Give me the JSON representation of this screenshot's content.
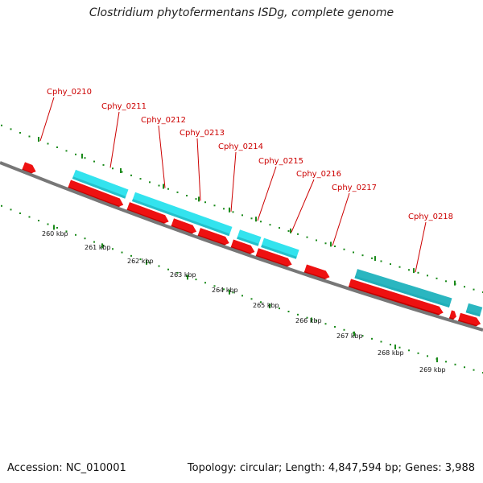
{
  "title": "Clostridium phytofermentans ISDg, complete genome",
  "footer": {
    "accession": "Accession: NC_010001",
    "topology": "Topology: circular; Length: 4,847,594 bp; Genes: 3,988"
  },
  "colors": {
    "backbone": "#777777",
    "gene_red": "#ee1111",
    "gene_red_dark": "#c20000",
    "feature_cyan": "#33e3ee",
    "feature_teal": "#2ab6c0",
    "tick_green": "#1a8a1a",
    "label_red": "#cc0000"
  },
  "gene_labels": [
    "Cphy_0210",
    "Cphy_0211",
    "Cphy_0212",
    "Cphy_0213",
    "Cphy_0214",
    "Cphy_0215",
    "Cphy_0216",
    "Cphy_0217",
    "Cphy_0218"
  ],
  "scale_labels": [
    "260 kbp",
    "261 kbp",
    "262 kbp",
    "263 kbp",
    "264 kbp",
    "265 kbp",
    "266 kbp",
    "267 kbp",
    "268 kbp",
    "269 kbp"
  ]
}
